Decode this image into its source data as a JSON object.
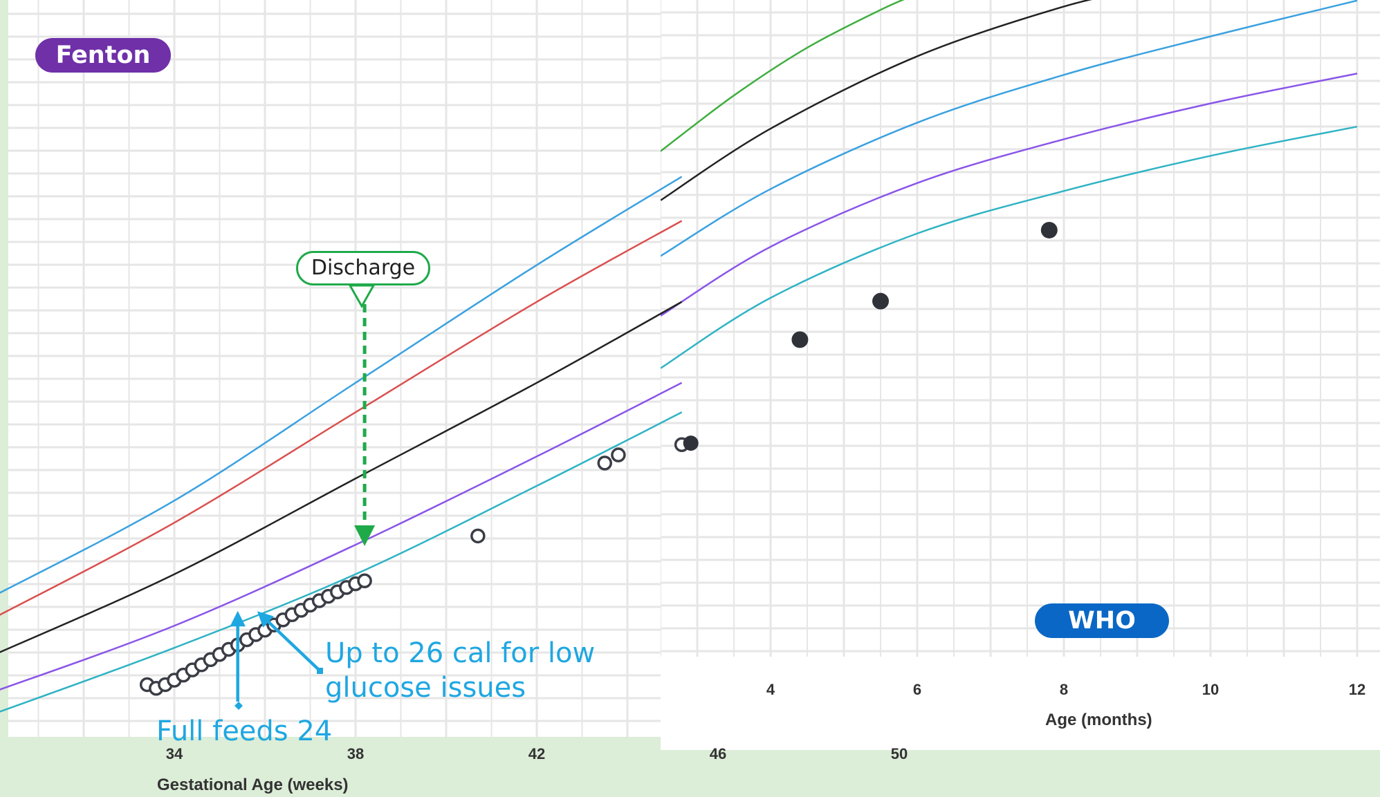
{
  "chart_data": [
    {
      "name": "fenton",
      "type": "scatter",
      "badge": "Fenton",
      "xlabel": "Gestational Age (weeks)",
      "ylabel": "",
      "x_ticks": [
        34,
        38,
        42,
        46,
        50
      ],
      "xlim": [
        30,
        51
      ],
      "ylim": [
        0,
        100
      ],
      "grid": true,
      "reference_curves": [
        {
          "color": "#3aa1e0",
          "x": [
            30,
            34,
            38,
            42,
            45.2
          ],
          "y": [
            19,
            32,
            48,
            64,
            76
          ]
        },
        {
          "color": "#d9504e",
          "x": [
            30,
            34,
            38,
            42,
            45.2
          ],
          "y": [
            16,
            29,
            44,
            59,
            70
          ]
        },
        {
          "color": "#222222",
          "x": [
            30,
            34,
            38,
            42,
            45.2
          ],
          "y": [
            11,
            22,
            35,
            48,
            59
          ]
        },
        {
          "color": "#8a55e8",
          "x": [
            30,
            34,
            38,
            42,
            45.2
          ],
          "y": [
            6,
            15,
            26,
            38,
            48
          ]
        },
        {
          "color": "#2fb3c4",
          "x": [
            30,
            34,
            38,
            42,
            45.2
          ],
          "y": [
            3,
            12,
            22,
            34,
            44
          ]
        }
      ],
      "points_open": {
        "x": [
          33.4,
          33.6,
          33.8,
          34.0,
          34.2,
          34.4,
          34.6,
          34.8,
          35.0,
          35.2,
          35.4,
          35.6,
          35.8,
          36.0,
          36.2,
          36.4,
          36.6,
          36.8,
          37.0,
          37.2,
          37.4,
          37.6,
          37.8,
          38.0,
          38.2,
          40.7,
          43.5,
          43.8,
          45.2
        ],
        "y": [
          7.0,
          6.5,
          7.0,
          7.6,
          8.3,
          9.0,
          9.7,
          10.4,
          11.1,
          11.8,
          12.4,
          13.1,
          13.8,
          14.4,
          15.1,
          15.8,
          16.5,
          17.1,
          17.8,
          18.4,
          19.0,
          19.6,
          20.2,
          20.7,
          21.1,
          27.2,
          37.1,
          38.2,
          39.6
        ]
      },
      "points_filled": {
        "x": [
          45.4
        ],
        "y": [
          39.8
        ]
      },
      "annotations": [
        {
          "text": "Discharge",
          "x": 38.2,
          "color": "#1faa4a"
        },
        {
          "text": "Up to 26 cal for low glucose issues",
          "x": 35.8,
          "color": "#1fa7e1"
        },
        {
          "text": "Full feeds 24",
          "x": 35.4,
          "color": "#1fa7e1"
        }
      ]
    },
    {
      "name": "who",
      "type": "scatter",
      "badge": "WHO",
      "xlabel": "Age (months)",
      "ylabel": "",
      "x_ticks": [
        4,
        6,
        8,
        10,
        12
      ],
      "xlim": [
        2.5,
        12.2
      ],
      "ylim": [
        0,
        100
      ],
      "grid": true,
      "reference_curves": [
        {
          "color": "#3fae3f",
          "x": [
            2.5,
            3.5,
            4.5,
            5.5,
            6.0
          ],
          "y": [
            79.3,
            87.7,
            94.9,
            100.6,
            103.0
          ]
        },
        {
          "color": "#222222",
          "x": [
            2.5,
            4,
            6,
            8,
            9.2
          ],
          "y": [
            71.9,
            82.7,
            93.6,
            101.1,
            104.0
          ]
        },
        {
          "color": "#3aa1e0",
          "x": [
            2.5,
            4,
            6,
            8,
            10,
            12.0
          ],
          "y": [
            63.5,
            73.6,
            83.6,
            90.8,
            96.6,
            102.0
          ]
        },
        {
          "color": "#8a55e8",
          "x": [
            2.5,
            4,
            6,
            8,
            10,
            12.0
          ],
          "y": [
            54.5,
            64.9,
            74.5,
            81.1,
            86.5,
            91.0
          ]
        },
        {
          "color": "#2fb3c4",
          "x": [
            2.5,
            4,
            6,
            8,
            10,
            12.0
          ],
          "y": [
            46.6,
            57.2,
            66.9,
            73.3,
            78.6,
            83.0
          ]
        }
      ],
      "points_filled": {
        "x": [
          4.4,
          5.5,
          7.8
        ],
        "y": [
          50.9,
          56.7,
          67.4
        ]
      },
      "points_open": {
        "x": [],
        "y": []
      }
    }
  ]
}
